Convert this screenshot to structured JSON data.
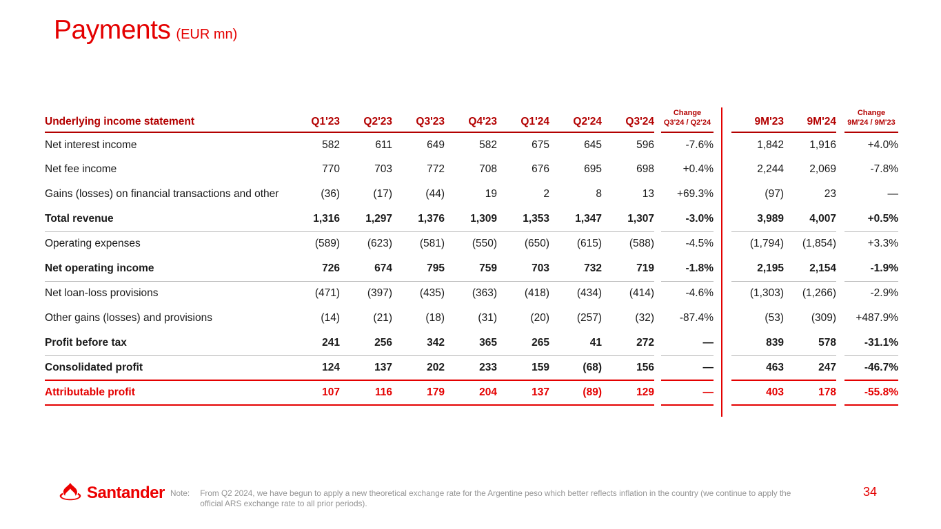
{
  "slide": {
    "title": "Payments",
    "title_suffix": "(EUR mn)",
    "page_number": "34"
  },
  "colors": {
    "brand_red": "#ec0000",
    "title_red": "#e40000",
    "header_dark_red": "#b30000",
    "separator_gray": "#b9b9b9",
    "note_gray": "#949494"
  },
  "table": {
    "header": {
      "label": "Underlying income statement",
      "quarters": [
        "Q1'23",
        "Q2'23",
        "Q3'23",
        "Q4'23",
        "Q1'24",
        "Q2'24",
        "Q3'24"
      ],
      "change_label": "Change",
      "change_q_label": "Q3'24 / Q2'24",
      "periods": [
        "9M'23",
        "9M'24"
      ],
      "change_9m_label": "9M'24 / 9M'23"
    },
    "rows": [
      {
        "label": "Net interest income",
        "bold": false,
        "red": false,
        "sep": "none",
        "values": [
          "582",
          "611",
          "649",
          "582",
          "675",
          "645",
          "596"
        ],
        "change_q": "-7.6%",
        "periods": [
          "1,842",
          "1,916"
        ],
        "change_9m": "+4.0%"
      },
      {
        "label": "Net fee income",
        "bold": false,
        "red": false,
        "sep": "none",
        "values": [
          "770",
          "703",
          "772",
          "708",
          "676",
          "695",
          "698"
        ],
        "change_q": "+0.4%",
        "periods": [
          "2,244",
          "2,069"
        ],
        "change_9m": "-7.8%"
      },
      {
        "label": "Gains (losses) on financial transactions and other",
        "bold": false,
        "red": false,
        "sep": "none",
        "values": [
          "(36)",
          "(17)",
          "(44)",
          "19",
          "2",
          "8",
          "13"
        ],
        "change_q": "+69.3%",
        "periods": [
          "(97)",
          "23"
        ],
        "change_9m": "—"
      },
      {
        "label": "Total revenue",
        "bold": true,
        "red": false,
        "sep": "gray",
        "values": [
          "1,316",
          "1,297",
          "1,376",
          "1,309",
          "1,353",
          "1,347",
          "1,307"
        ],
        "change_q": "-3.0%",
        "periods": [
          "3,989",
          "4,007"
        ],
        "change_9m": "+0.5%"
      },
      {
        "label": "Operating expenses",
        "bold": false,
        "red": false,
        "sep": "none",
        "values": [
          "(589)",
          "(623)",
          "(581)",
          "(550)",
          "(650)",
          "(615)",
          "(588)"
        ],
        "change_q": "-4.5%",
        "periods": [
          "(1,794)",
          "(1,854)"
        ],
        "change_9m": "+3.3%"
      },
      {
        "label": "Net operating income",
        "bold": true,
        "red": false,
        "sep": "gray",
        "values": [
          "726",
          "674",
          "795",
          "759",
          "703",
          "732",
          "719"
        ],
        "change_q": "-1.8%",
        "periods": [
          "2,195",
          "2,154"
        ],
        "change_9m": "-1.9%"
      },
      {
        "label": "Net loan-loss provisions",
        "bold": false,
        "red": false,
        "sep": "none",
        "values": [
          "(471)",
          "(397)",
          "(435)",
          "(363)",
          "(418)",
          "(434)",
          "(414)"
        ],
        "change_q": "-4.6%",
        "periods": [
          "(1,303)",
          "(1,266)"
        ],
        "change_9m": "-2.9%"
      },
      {
        "label": "Other gains (losses) and provisions",
        "bold": false,
        "red": false,
        "sep": "none",
        "values": [
          "(14)",
          "(21)",
          "(18)",
          "(31)",
          "(20)",
          "(257)",
          "(32)"
        ],
        "change_q": "-87.4%",
        "periods": [
          "(53)",
          "(309)"
        ],
        "change_9m": "+487.9%"
      },
      {
        "label": "Profit before tax",
        "bold": true,
        "red": false,
        "sep": "gray",
        "values": [
          "241",
          "256",
          "342",
          "365",
          "265",
          "41",
          "272"
        ],
        "change_q": "—",
        "periods": [
          "839",
          "578"
        ],
        "change_9m": "-31.1%"
      },
      {
        "label": "Consolidated profit",
        "bold": true,
        "red": false,
        "sep": "red",
        "values": [
          "124",
          "137",
          "202",
          "233",
          "159",
          "(68)",
          "156"
        ],
        "change_q": "—",
        "periods": [
          "463",
          "247"
        ],
        "change_9m": "-46.7%"
      },
      {
        "label": "Attributable profit",
        "bold": true,
        "red": true,
        "sep": "red",
        "values": [
          "107",
          "116",
          "179",
          "204",
          "137",
          "(89)",
          "129"
        ],
        "change_q": "—",
        "periods": [
          "403",
          "178"
        ],
        "change_9m": "-55.8%"
      }
    ]
  },
  "footer": {
    "logo_text": "Santander",
    "note_label": "Note:",
    "note_text": "From Q2 2024, we have begun to apply a new theoretical exchange rate for the Argentine peso which better reflects inflation in the country (we continue to apply the official ARS exchange rate to all prior periods)."
  }
}
